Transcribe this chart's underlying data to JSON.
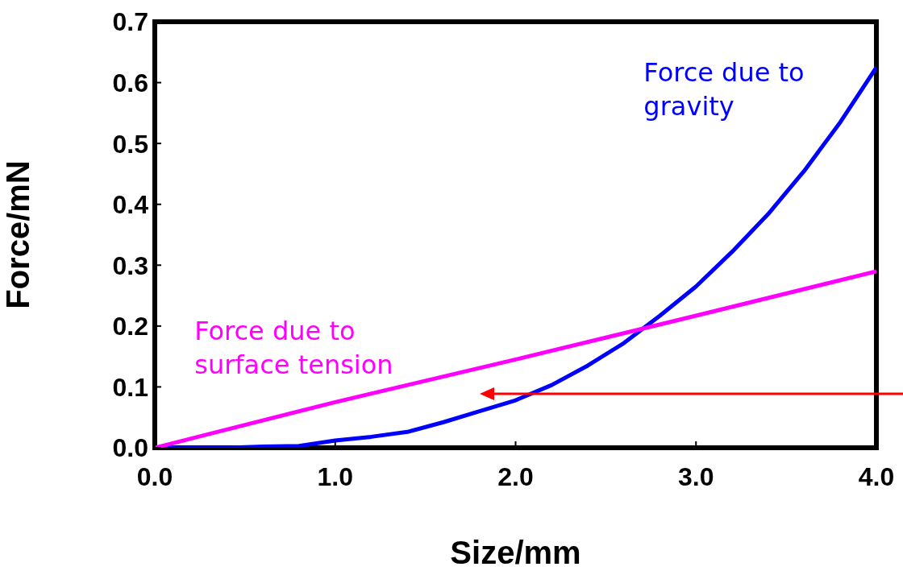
{
  "chart_data": {
    "type": "line",
    "xlabel": "Size/mm",
    "ylabel": "Force/mN",
    "xlim": [
      0,
      4
    ],
    "xticks": [
      {
        "value": 0,
        "label": "0.0"
      },
      {
        "value": 1,
        "label": "1.0"
      },
      {
        "value": 2,
        "label": "2.0"
      },
      {
        "value": 3,
        "label": "3.0"
      },
      {
        "value": 4,
        "label": "4.0"
      }
    ],
    "ylim": [
      0,
      0.7
    ],
    "yticks": [
      {
        "value": 0,
        "label": "0.0"
      },
      0.1,
      0.2,
      0.3,
      0.4,
      0.5,
      0.6,
      0.7
    ],
    "grid": false,
    "legend": false,
    "marker": "none",
    "line_style": "solid",
    "series": [
      {
        "name": "Force due to gravity",
        "color": "#0000ff",
        "x": [
          0,
          0.2,
          0.4,
          0.6,
          0.8,
          1.0,
          1.2,
          1.4,
          1.6,
          1.8,
          2.0,
          2.2,
          2.4,
          2.6,
          2.8,
          3.0,
          3.2,
          3.4,
          3.6,
          3.8,
          4.0
        ],
        "values": [
          0,
          0,
          0,
          0.002,
          0.003,
          0.012,
          0.018,
          0.026,
          0.042,
          0.06,
          0.078,
          0.103,
          0.135,
          0.172,
          0.217,
          0.265,
          0.322,
          0.384,
          0.455,
          0.535,
          0.625
        ]
      },
      {
        "name": "Force due to surface tension",
        "color": "#ff00ff",
        "x": [
          0,
          1,
          2,
          3,
          4
        ],
        "values": [
          0,
          0.075,
          0.145,
          0.217,
          0.29
        ]
      }
    ]
  }
}
